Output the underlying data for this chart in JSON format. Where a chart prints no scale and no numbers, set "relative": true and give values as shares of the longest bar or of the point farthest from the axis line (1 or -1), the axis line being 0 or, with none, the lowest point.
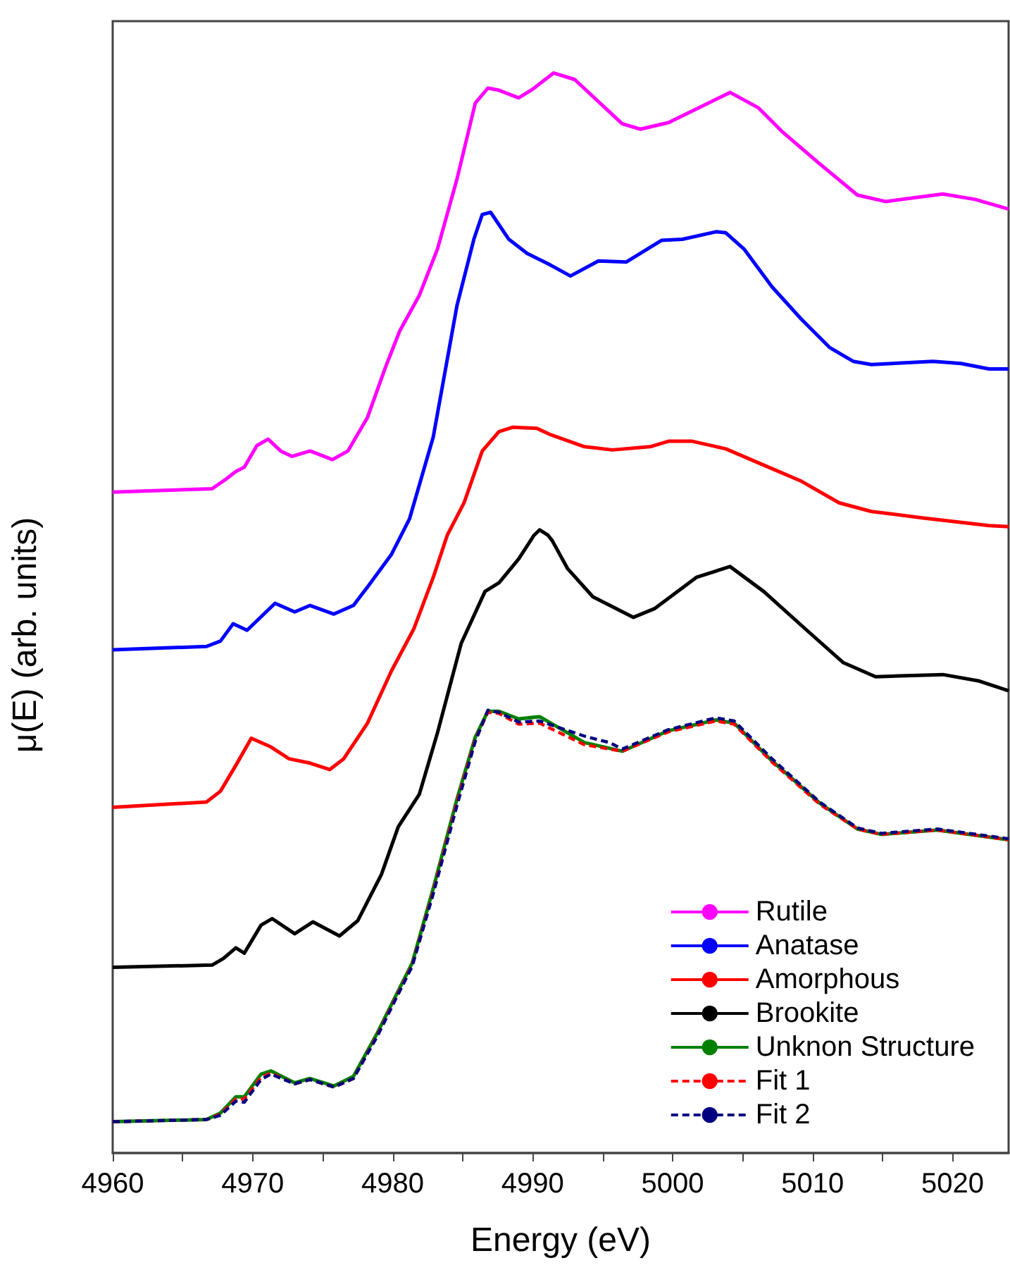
{
  "chart_data": {
    "type": "line",
    "xlabel": "Energy (eV)",
    "ylabel": "μ(E) (arb. units)",
    "relative": true,
    "marker": "none",
    "grid": false,
    "legend": "bottom right",
    "xlim": [
      4960,
      5024
    ],
    "xticks": [
      4960,
      {
        "value": 4965,
        "label": null
      },
      4970,
      {
        "value": 4975,
        "label": null
      },
      4980,
      {
        "value": 4985,
        "label": null
      },
      4990,
      {
        "value": 4995,
        "label": null
      },
      5000,
      {
        "value": 5005,
        "label": null
      },
      5010,
      {
        "value": 5015,
        "label": null
      },
      5020
    ],
    "series": [
      {
        "name": "Rutile",
        "color": "#ff00ff",
        "line_style": "solid",
        "x": [
          4960,
          4967.1,
          4968.1,
          4968.8,
          4969.4,
          4970.3,
          4971.1,
          4972.0,
          4972.8,
          4974.1,
          4975.7,
          4976.8,
          4978.2,
          4979.5,
          4980.5,
          4981.9,
          4983.2,
          4984.6,
          4985.9,
          4986.8,
          4987.6,
          4989.0,
          4990.0,
          4991.5,
          4993.0,
          4996.4,
          4997.7,
          4999.7,
          5004.1,
          5006.1,
          5007.8,
          5010.5,
          5013.2,
          5015.2,
          5019.3,
          5021.6,
          5024
        ],
        "values": [
          0.612,
          0.615,
          0.624,
          0.631,
          0.635,
          0.655,
          0.661,
          0.65,
          0.645,
          0.65,
          0.642,
          0.65,
          0.681,
          0.728,
          0.761,
          0.794,
          0.837,
          0.902,
          0.972,
          0.986,
          0.984,
          0.977,
          0.985,
          1.0,
          0.994,
          0.953,
          0.948,
          0.954,
          0.982,
          0.968,
          0.946,
          0.916,
          0.887,
          0.881,
          0.888,
          0.883,
          0.874
        ]
      },
      {
        "name": "Anatase",
        "color": "#0000ff",
        "line_style": "solid",
        "x": [
          4960,
          4966.7,
          4967.7,
          4968.6,
          4969.6,
          4971.6,
          4973.0,
          4974.1,
          4975.8,
          4977.2,
          4978.2,
          4979.9,
          4981.2,
          4982.9,
          4984.6,
          4985.8,
          4986.4,
          4987.0,
          4988.3,
          4989.6,
          4991.3,
          4992.7,
          4994.7,
          4996.7,
          4999.2,
          5000.7,
          5003.1,
          5003.8,
          5005.1,
          5007.1,
          5009.2,
          5011.2,
          5012.9,
          5014.2,
          5018.6,
          5020.6,
          5022.6,
          5024
        ],
        "values": [
          0.466,
          0.469,
          0.474,
          0.49,
          0.484,
          0.509,
          0.501,
          0.507,
          0.499,
          0.507,
          0.524,
          0.554,
          0.587,
          0.663,
          0.785,
          0.846,
          0.869,
          0.871,
          0.846,
          0.833,
          0.822,
          0.812,
          0.826,
          0.825,
          0.845,
          0.846,
          0.853,
          0.852,
          0.837,
          0.802,
          0.772,
          0.746,
          0.733,
          0.73,
          0.733,
          0.731,
          0.726,
          0.726
        ]
      },
      {
        "name": "Amorphous",
        "color": "#ff0000",
        "line_style": "solid",
        "x": [
          4960,
          4966.7,
          4967.7,
          4968.8,
          4969.9,
          4971.3,
          4972.6,
          4974.1,
          4975.5,
          4976.5,
          4978.2,
          4979.9,
          4981.5,
          4982.9,
          4983.9,
          4985.1,
          4986.4,
          4987.6,
          4988.6,
          4990.3,
          4991.3,
          4993.7,
          4995.7,
          4998.4,
          4999.7,
          5001.4,
          5003.8,
          5006.5,
          5009.2,
          5011.9,
          5014.2,
          5017.9,
          5022.6,
          5024
        ],
        "values": [
          0.32,
          0.325,
          0.335,
          0.359,
          0.384,
          0.376,
          0.365,
          0.361,
          0.355,
          0.365,
          0.398,
          0.446,
          0.485,
          0.533,
          0.572,
          0.602,
          0.65,
          0.668,
          0.672,
          0.671,
          0.665,
          0.654,
          0.651,
          0.654,
          0.659,
          0.659,
          0.652,
          0.637,
          0.622,
          0.602,
          0.594,
          0.588,
          0.581,
          0.58
        ]
      },
      {
        "name": "Brookite",
        "color": "#000000",
        "line_style": "solid",
        "x": [
          4960,
          4967.1,
          4967.9,
          4968.8,
          4969.4,
          4970.6,
          4971.4,
          4973.0,
          4974.3,
          4976.2,
          4977.5,
          4979.2,
          4980.4,
          4981.9,
          4983.2,
          4984.9,
          4986.6,
          4987.6,
          4989.0,
          4990.1,
          4990.5,
          4991.1,
          4991.4,
          4992.5,
          4994.3,
          4997.2,
          4998.7,
          5001.7,
          5004.1,
          5006.5,
          5009.5,
          5012.2,
          5014.5,
          5019.3,
          5021.9,
          5024
        ],
        "values": [
          0.172,
          0.174,
          0.18,
          0.19,
          0.185,
          0.211,
          0.217,
          0.203,
          0.214,
          0.201,
          0.215,
          0.258,
          0.302,
          0.332,
          0.389,
          0.472,
          0.52,
          0.528,
          0.55,
          0.572,
          0.577,
          0.572,
          0.567,
          0.541,
          0.515,
          0.496,
          0.504,
          0.533,
          0.543,
          0.52,
          0.485,
          0.454,
          0.441,
          0.443,
          0.437,
          0.428
        ]
      },
      {
        "name": "Unknon Structure",
        "color": "#008000",
        "line_style": "solid",
        "x": [
          4960,
          4966.7,
          4967.7,
          4968.8,
          4969.4,
          4970.6,
          4971.3,
          4973.0,
          4974.1,
          4975.8,
          4977.2,
          4978.9,
          4980.2,
          4981.4,
          4982.9,
          4984.6,
          4985.9,
          4986.8,
          4987.6,
          4989.0,
          4990.5,
          4993.7,
          4996.4,
          4999.7,
          5003.1,
          5004.4,
          5007.1,
          5010.5,
          5013.2,
          5014.9,
          5018.9,
          5024
        ],
        "values": [
          0.029,
          0.031,
          0.037,
          0.052,
          0.052,
          0.073,
          0.076,
          0.065,
          0.069,
          0.062,
          0.071,
          0.111,
          0.145,
          0.176,
          0.245,
          0.328,
          0.385,
          0.409,
          0.409,
          0.402,
          0.404,
          0.38,
          0.372,
          0.391,
          0.401,
          0.398,
          0.363,
          0.324,
          0.3,
          0.295,
          0.299,
          0.29
        ]
      },
      {
        "name": "Fit 1",
        "color": "#ff0000",
        "line_style": "dashed",
        "x": [
          4960,
          4966.7,
          4967.7,
          4968.8,
          4969.4,
          4970.6,
          4971.3,
          4973.0,
          4974.1,
          4975.8,
          4977.2,
          4978.9,
          4980.2,
          4981.4,
          4982.9,
          4984.6,
          4985.9,
          4986.8,
          4987.6,
          4989.0,
          4990.5,
          4993.7,
          4996.4,
          4999.7,
          5003.1,
          5004.4,
          5007.1,
          5010.5,
          5013.2,
          5014.9,
          5018.9,
          5024
        ],
        "values": [
          0.029,
          0.031,
          0.036,
          0.05,
          0.05,
          0.07,
          0.074,
          0.064,
          0.068,
          0.061,
          0.069,
          0.109,
          0.143,
          0.174,
          0.242,
          0.325,
          0.383,
          0.408,
          0.407,
          0.397,
          0.398,
          0.378,
          0.372,
          0.39,
          0.4,
          0.397,
          0.362,
          0.323,
          0.3,
          0.295,
          0.299,
          0.29
        ]
      },
      {
        "name": "Fit 2",
        "color": "#000080",
        "line_style": "dashed",
        "x": [
          4960,
          4966.7,
          4967.7,
          4968.8,
          4969.4,
          4970.6,
          4971.3,
          4973.0,
          4974.1,
          4975.8,
          4977.2,
          4978.9,
          4980.2,
          4981.4,
          4982.9,
          4984.6,
          4985.9,
          4986.8,
          4987.6,
          4989.0,
          4990.5,
          4993.7,
          4995.5,
          4996.4,
          4999.7,
          5003.1,
          5004.4,
          5007.1,
          5010.5,
          5013.2,
          5014.9,
          5018.9,
          5024
        ],
        "values": [
          0.029,
          0.031,
          0.035,
          0.048,
          0.047,
          0.068,
          0.073,
          0.064,
          0.068,
          0.061,
          0.069,
          0.108,
          0.142,
          0.173,
          0.24,
          0.322,
          0.381,
          0.41,
          0.408,
          0.399,
          0.4,
          0.386,
          0.38,
          0.374,
          0.392,
          0.403,
          0.4,
          0.365,
          0.325,
          0.301,
          0.296,
          0.3,
          0.291
        ]
      }
    ]
  }
}
